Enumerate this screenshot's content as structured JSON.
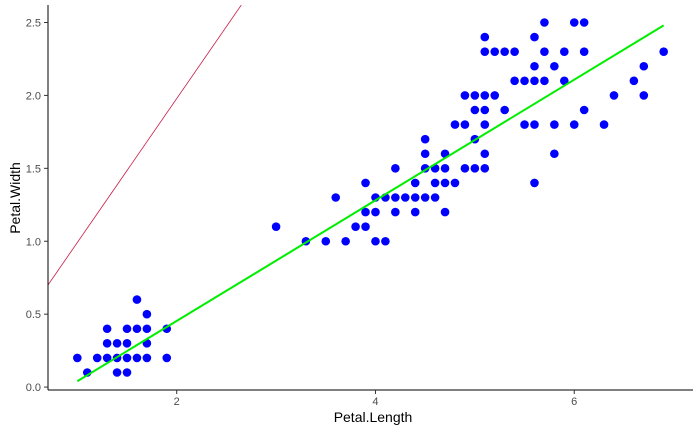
{
  "chart_data": {
    "type": "scatter",
    "xlabel": "Petal.Length",
    "ylabel": "Petal.Width",
    "xlim": [
      0.705,
      7.195
    ],
    "ylim": [
      -0.02,
      2.62
    ],
    "x_ticks": [
      {
        "value": 2,
        "label": "2"
      },
      {
        "value": 4,
        "label": "4"
      },
      {
        "value": 6,
        "label": "6"
      }
    ],
    "y_ticks": [
      {
        "value": 0.0,
        "label": "0.0"
      },
      {
        "value": 0.5,
        "label": "0.5"
      },
      {
        "value": 1.0,
        "label": "1.0"
      },
      {
        "value": 1.5,
        "label": "1.5"
      },
      {
        "value": 2.0,
        "label": "2.0"
      },
      {
        "value": 2.5,
        "label": "2.5"
      }
    ],
    "grid": false,
    "point_color": "#0000ff",
    "fit_line": {
      "color": "#00ee00",
      "x": [
        1.0,
        6.9
      ],
      "y": [
        0.04,
        2.48
      ]
    },
    "reference_line": {
      "color": "#c7204a",
      "x": [
        0.705,
        2.65
      ],
      "y": [
        0.7,
        2.62
      ]
    },
    "points": [
      [
        1.0,
        0.2
      ],
      [
        1.1,
        0.1
      ],
      [
        1.2,
        0.2
      ],
      [
        1.3,
        0.2
      ],
      [
        1.3,
        0.3
      ],
      [
        1.3,
        0.4
      ],
      [
        1.4,
        0.1
      ],
      [
        1.4,
        0.2
      ],
      [
        1.4,
        0.3
      ],
      [
        1.5,
        0.1
      ],
      [
        1.5,
        0.2
      ],
      [
        1.5,
        0.3
      ],
      [
        1.5,
        0.4
      ],
      [
        1.6,
        0.2
      ],
      [
        1.6,
        0.4
      ],
      [
        1.6,
        0.6
      ],
      [
        1.7,
        0.2
      ],
      [
        1.7,
        0.3
      ],
      [
        1.7,
        0.4
      ],
      [
        1.7,
        0.5
      ],
      [
        1.9,
        0.2
      ],
      [
        1.9,
        0.4
      ],
      [
        3.0,
        1.1
      ],
      [
        3.3,
        1.0
      ],
      [
        3.5,
        1.0
      ],
      [
        3.6,
        1.3
      ],
      [
        3.7,
        1.0
      ],
      [
        3.8,
        1.1
      ],
      [
        3.9,
        1.1
      ],
      [
        3.9,
        1.2
      ],
      [
        3.9,
        1.4
      ],
      [
        4.0,
        1.0
      ],
      [
        4.0,
        1.2
      ],
      [
        4.0,
        1.3
      ],
      [
        4.1,
        1.0
      ],
      [
        4.1,
        1.3
      ],
      [
        4.2,
        1.2
      ],
      [
        4.2,
        1.3
      ],
      [
        4.2,
        1.5
      ],
      [
        4.3,
        1.3
      ],
      [
        4.4,
        1.2
      ],
      [
        4.4,
        1.3
      ],
      [
        4.4,
        1.4
      ],
      [
        4.5,
        1.3
      ],
      [
        4.5,
        1.5
      ],
      [
        4.5,
        1.6
      ],
      [
        4.5,
        1.7
      ],
      [
        4.6,
        1.3
      ],
      [
        4.6,
        1.4
      ],
      [
        4.6,
        1.5
      ],
      [
        4.7,
        1.2
      ],
      [
        4.7,
        1.4
      ],
      [
        4.7,
        1.5
      ],
      [
        4.7,
        1.6
      ],
      [
        4.8,
        1.4
      ],
      [
        4.8,
        1.8
      ],
      [
        4.9,
        1.5
      ],
      [
        4.9,
        1.8
      ],
      [
        4.9,
        2.0
      ],
      [
        5.0,
        1.5
      ],
      [
        5.0,
        1.7
      ],
      [
        5.0,
        1.9
      ],
      [
        5.0,
        2.0
      ],
      [
        5.1,
        1.5
      ],
      [
        5.1,
        1.6
      ],
      [
        5.1,
        1.8
      ],
      [
        5.1,
        1.9
      ],
      [
        5.1,
        2.0
      ],
      [
        5.1,
        2.3
      ],
      [
        5.1,
        2.4
      ],
      [
        5.2,
        2.0
      ],
      [
        5.2,
        2.3
      ],
      [
        5.3,
        1.9
      ],
      [
        5.3,
        2.3
      ],
      [
        5.4,
        2.1
      ],
      [
        5.4,
        2.3
      ],
      [
        5.5,
        1.8
      ],
      [
        5.5,
        2.1
      ],
      [
        5.6,
        1.4
      ],
      [
        5.6,
        1.8
      ],
      [
        5.6,
        2.1
      ],
      [
        5.6,
        2.2
      ],
      [
        5.6,
        2.4
      ],
      [
        5.7,
        2.1
      ],
      [
        5.7,
        2.3
      ],
      [
        5.7,
        2.5
      ],
      [
        5.8,
        1.6
      ],
      [
        5.8,
        1.8
      ],
      [
        5.8,
        2.2
      ],
      [
        5.9,
        2.1
      ],
      [
        5.9,
        2.3
      ],
      [
        6.0,
        1.8
      ],
      [
        6.0,
        2.5
      ],
      [
        6.1,
        1.9
      ],
      [
        6.1,
        2.3
      ],
      [
        6.1,
        2.5
      ],
      [
        6.3,
        1.8
      ],
      [
        6.4,
        2.0
      ],
      [
        6.6,
        2.1
      ],
      [
        6.7,
        2.0
      ],
      [
        6.7,
        2.2
      ],
      [
        6.9,
        2.3
      ]
    ]
  }
}
